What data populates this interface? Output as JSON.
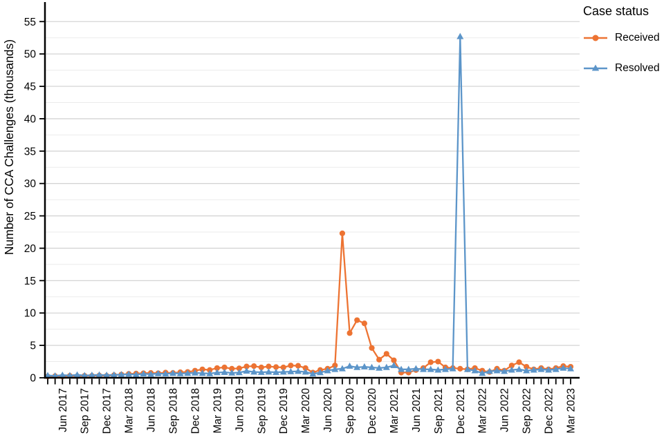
{
  "chart_data": {
    "type": "line",
    "title": "",
    "xlabel": "",
    "ylabel": "Number of CCA Challenges (thousands)",
    "legend": {
      "title": "Case status",
      "position": "right"
    },
    "y_axis": {
      "min": 0,
      "max": 57.8,
      "major_tick_step": 5,
      "minor_grid_step": 2.5,
      "tick_labels": [
        "0",
        "5",
        "10",
        "15",
        "20",
        "25",
        "30",
        "35",
        "40",
        "45",
        "50",
        "55"
      ]
    },
    "x_axis": {
      "labeled_months": [
        "Mar",
        "Jun",
        "Sep",
        "Dec"
      ],
      "tick_labels_shown": [
        "Jun 2017",
        "Sep 2017",
        "Dec 2017",
        "Mar 2018",
        "Jun 2018",
        "Sep 2018",
        "Dec 2018",
        "Mar 2019",
        "Jun 2019",
        "Sep 2019",
        "Dec 2019",
        "Mar 2020",
        "Jun 2020",
        "Sep 2020",
        "Dec 2020",
        "Mar 2021",
        "Jun 2021",
        "Sep 2021",
        "Dec 2021",
        "Mar 2022",
        "Jun 2022",
        "Sep 2022",
        "Dec 2022",
        "Mar 2023"
      ]
    },
    "grid": {
      "horizontal_only": true,
      "major_color": "#d4d4d4",
      "minor_color": "#ebebeb"
    },
    "x": [
      "Apr 2017",
      "May 2017",
      "Jun 2017",
      "Jul 2017",
      "Aug 2017",
      "Sep 2017",
      "Oct 2017",
      "Nov 2017",
      "Dec 2017",
      "Jan 2018",
      "Feb 2018",
      "Mar 2018",
      "Apr 2018",
      "May 2018",
      "Jun 2018",
      "Jul 2018",
      "Aug 2018",
      "Sep 2018",
      "Oct 2018",
      "Nov 2018",
      "Dec 2018",
      "Jan 2019",
      "Feb 2019",
      "Mar 2019",
      "Apr 2019",
      "May 2019",
      "Jun 2019",
      "Jul 2019",
      "Aug 2019",
      "Sep 2019",
      "Oct 2019",
      "Nov 2019",
      "Dec 2019",
      "Jan 2020",
      "Feb 2020",
      "Mar 2020",
      "Apr 2020",
      "May 2020",
      "Jun 2020",
      "Jul 2020",
      "Aug 2020",
      "Sep 2020",
      "Oct 2020",
      "Nov 2020",
      "Dec 2020",
      "Jan 2021",
      "Feb 2021",
      "Mar 2021",
      "Apr 2021",
      "May 2021",
      "Jun 2021",
      "Jul 2021",
      "Aug 2021",
      "Sep 2021",
      "Oct 2021",
      "Nov 2021",
      "Dec 2021",
      "Jan 2022",
      "Feb 2022",
      "Mar 2022",
      "Apr 2022",
      "May 2022",
      "Jun 2022",
      "Jul 2022",
      "Aug 2022",
      "Sep 2022",
      "Oct 2022",
      "Nov 2022",
      "Dec 2022",
      "Jan 2023",
      "Feb 2023",
      "Mar 2023"
    ],
    "series": [
      {
        "name": "Received",
        "color": "#ED7332",
        "marker": "circle",
        "values": [
          0.2,
          0.25,
          0.2,
          0.3,
          0.25,
          0.3,
          0.3,
          0.35,
          0.3,
          0.4,
          0.5,
          0.6,
          0.65,
          0.7,
          0.75,
          0.7,
          0.8,
          0.75,
          0.85,
          0.9,
          1.1,
          1.3,
          1.2,
          1.5,
          1.6,
          1.4,
          1.45,
          1.75,
          1.8,
          1.6,
          1.75,
          1.65,
          1.6,
          1.9,
          1.85,
          1.5,
          0.8,
          1.2,
          1.4,
          1.9,
          22.3,
          6.9,
          8.9,
          8.4,
          4.6,
          2.8,
          3.7,
          2.7,
          0.8,
          0.8,
          1.2,
          1.5,
          2.4,
          2.5,
          1.6,
          1.5,
          1.4,
          1.3,
          1.5,
          1.1,
          0.9,
          1.4,
          1.1,
          1.9,
          2.4,
          1.7,
          1.3,
          1.5,
          1.3,
          1.5,
          1.8,
          1.7
        ]
      },
      {
        "name": "Resolved",
        "color": "#5C95C9",
        "marker": "triangle-up",
        "values": [
          0.35,
          0.3,
          0.4,
          0.35,
          0.45,
          0.35,
          0.4,
          0.45,
          0.4,
          0.45,
          0.5,
          0.55,
          0.5,
          0.6,
          0.55,
          0.65,
          0.6,
          0.7,
          0.65,
          0.7,
          0.75,
          0.7,
          0.65,
          0.8,
          0.85,
          0.75,
          0.8,
          1.05,
          0.9,
          0.85,
          0.9,
          0.85,
          0.9,
          0.95,
          1.0,
          0.9,
          0.6,
          0.8,
          1.1,
          1.3,
          1.4,
          1.8,
          1.6,
          1.7,
          1.6,
          1.5,
          1.6,
          1.9,
          1.3,
          1.3,
          1.4,
          1.3,
          1.3,
          1.2,
          1.3,
          1.4,
          52.7,
          1.3,
          1.1,
          0.7,
          1.0,
          1.1,
          1.0,
          1.2,
          1.3,
          1.1,
          1.2,
          1.3,
          1.2,
          1.3,
          1.5,
          1.4
        ]
      }
    ]
  }
}
